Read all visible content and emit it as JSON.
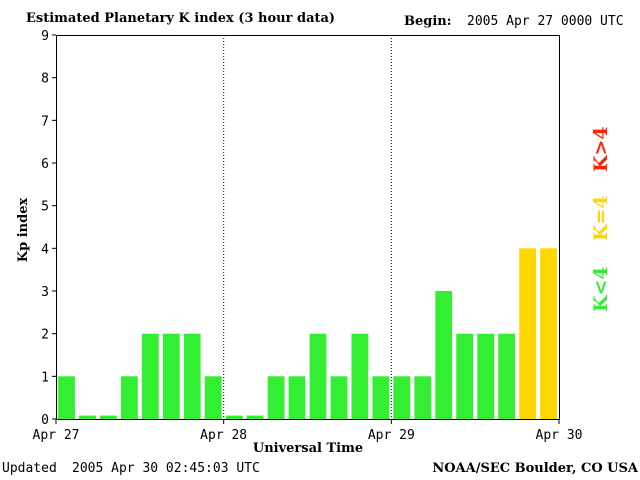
{
  "header": {
    "title": "Estimated Planetary K index (3 hour data)",
    "begin_label": "Begin:",
    "begin_value": "2005 Apr 27 0000 UTC"
  },
  "footer": {
    "updated_label": "Updated",
    "updated_value": "2005 Apr 30 02:45:03 UTC",
    "source": "NOAA/SEC Boulder, CO USA"
  },
  "legend": {
    "low": {
      "text": "K<4",
      "color": "#33ee33"
    },
    "mid": {
      "text": "K=4",
      "color": "#ffd700"
    },
    "high": {
      "text": "K>4",
      "color": "#ff2200"
    }
  },
  "chart_data": {
    "type": "bar",
    "title": "Estimated Planetary K index (3 hour data)",
    "xlabel": "Universal Time",
    "ylabel": "Kp index",
    "ylim": [
      0,
      9
    ],
    "yticks": [
      0,
      1,
      2,
      3,
      4,
      5,
      6,
      7,
      8,
      9
    ],
    "xtick_labels": [
      "Apr 27",
      "Apr 28",
      "Apr 29",
      "Apr 30"
    ],
    "bars_per_day": 8,
    "values": [
      1,
      0,
      0,
      1,
      2,
      2,
      2,
      1,
      0,
      0,
      1,
      1,
      2,
      1,
      2,
      1,
      1,
      1,
      3,
      2,
      2,
      2,
      4,
      4
    ],
    "colors": {
      "below_4": "#33ee33",
      "equal_4": "#ffd700",
      "above_4": "#ff2200"
    },
    "grid": false
  }
}
